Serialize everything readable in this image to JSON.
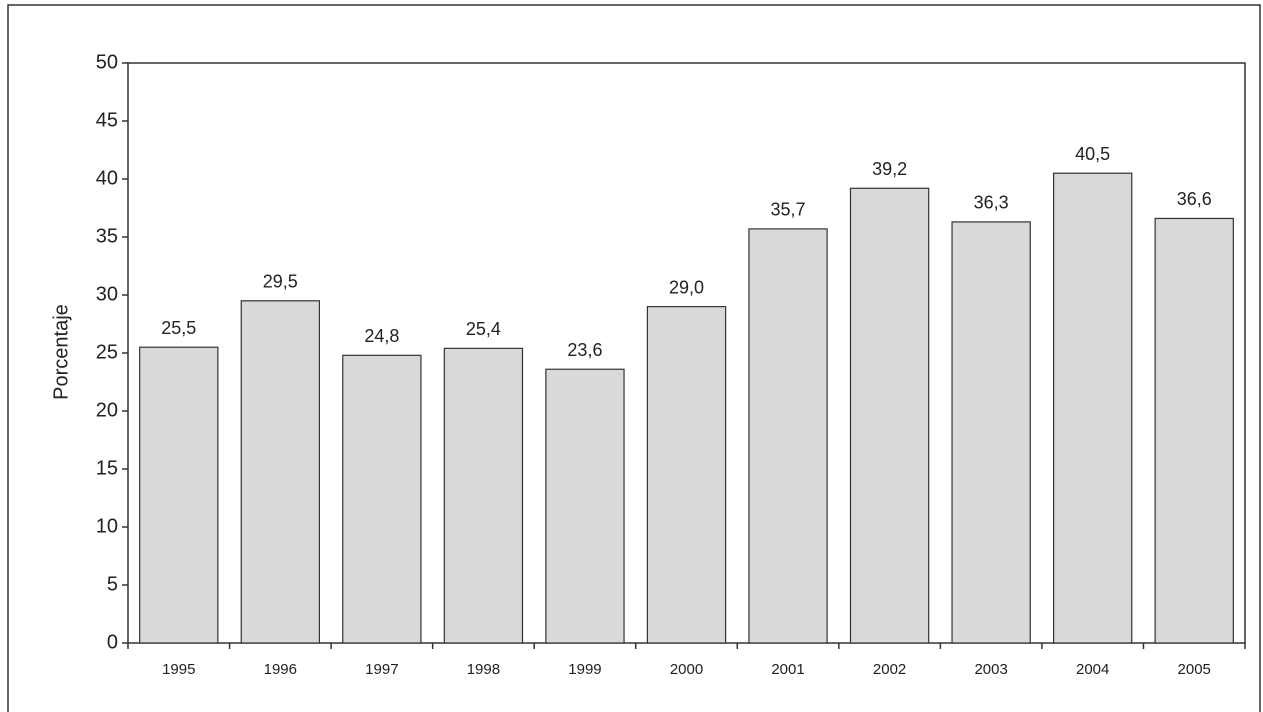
{
  "chart_data": {
    "type": "bar",
    "y_label": "Porcentaje",
    "categories": [
      "1995",
      "1996",
      "1997",
      "1998",
      "1999",
      "2000",
      "2001",
      "2002",
      "2003",
      "2004",
      "2005"
    ],
    "values": [
      25.5,
      29.5,
      24.8,
      25.4,
      23.6,
      29.0,
      35.7,
      39.2,
      36.3,
      40.5,
      36.6
    ],
    "value_labels": [
      "25,5",
      "29,5",
      "24,8",
      "25,4",
      "23,6",
      "29,0",
      "35,7",
      "39,2",
      "36,3",
      "40,5",
      "36,6"
    ],
    "color": "#d9d9d9",
    "ylim": [
      0,
      50
    ],
    "yticks": [
      0,
      5,
      10,
      15,
      20,
      25,
      30,
      35,
      40,
      45,
      50
    ],
    "grid": false
  }
}
